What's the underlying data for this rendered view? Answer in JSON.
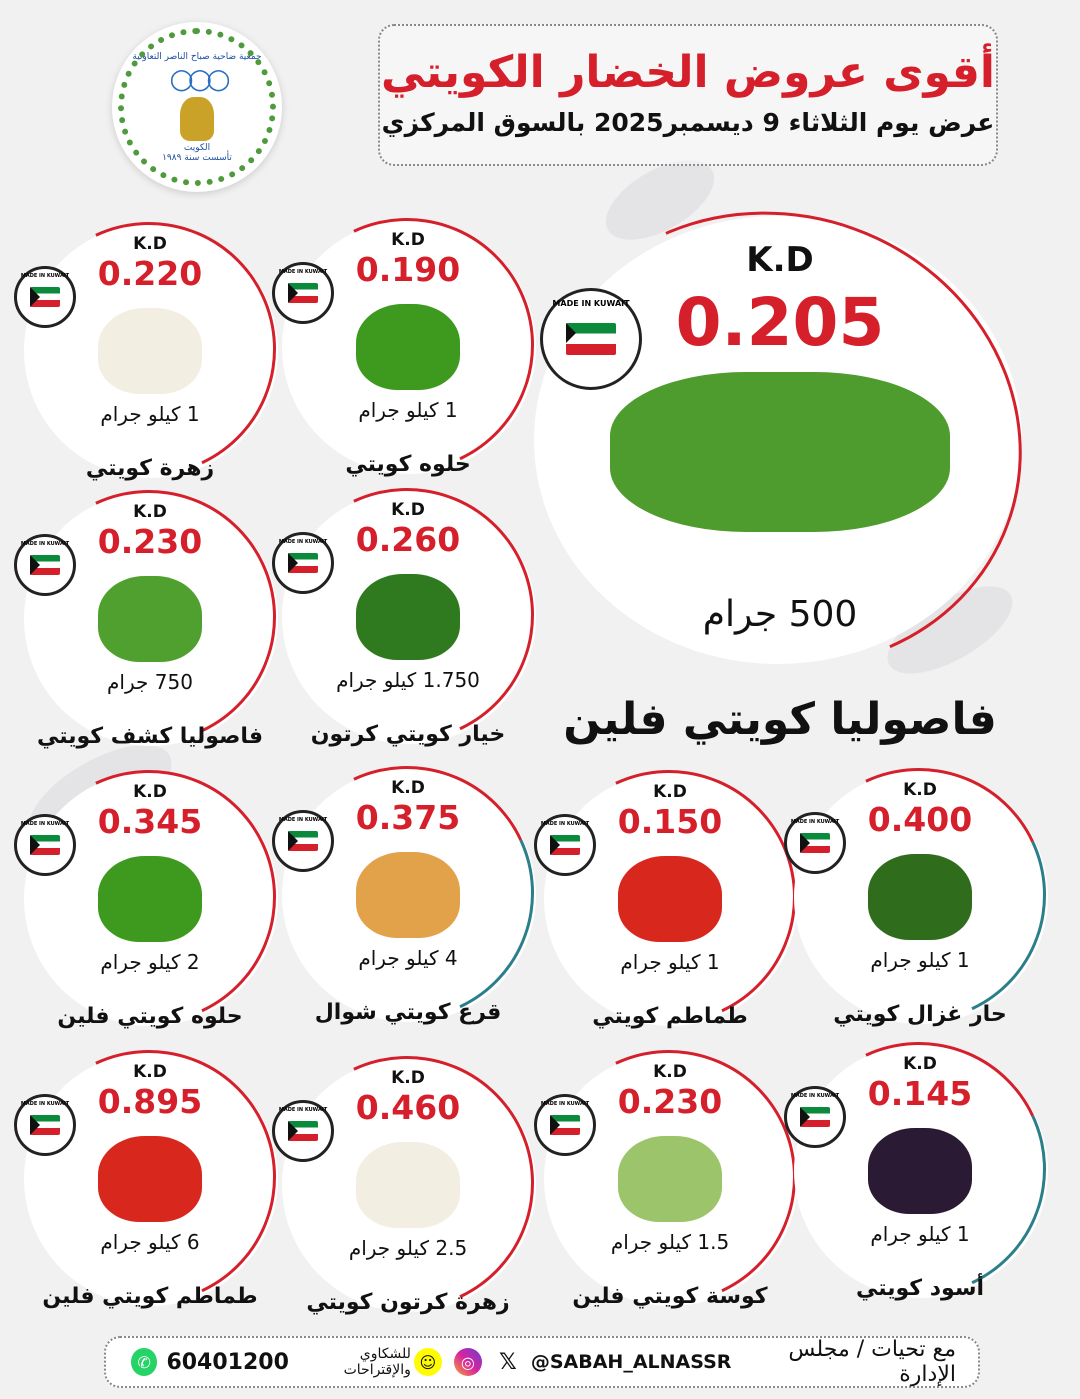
{
  "logo": {
    "text_top": "جمعية ضاحية صباح الناصر التعاونية",
    "text_country": "الكويت",
    "text_founded": "تأسست سنة ١٩٨٩"
  },
  "header": {
    "title": "أقوى عروض الخضار الكويتي",
    "subtitle": "عرض يوم الثلاثاء 9 ديسمبر2025 بالسوق المركزي"
  },
  "badge_text": "MADE IN KUWAIT",
  "currency": "K.D",
  "featured": {
    "price": "0.205",
    "weight": "500 جرام",
    "name": "فاصوليا كويتي فلين",
    "image_color": "#4f9c2e"
  },
  "products": [
    {
      "price": "0.220",
      "weight": "1 كيلو جرام",
      "name": "زهرة كويتي",
      "image_color": "#f2efe2"
    },
    {
      "price": "0.190",
      "weight": "1 كيلو جرام",
      "name": "حلوه كويتي",
      "image_color": "#3e9a1e"
    },
    {
      "price": "0.230",
      "weight": "750 جرام",
      "name": "فاصوليا كشف كويتي",
      "image_color": "#4fa02e"
    },
    {
      "price": "0.260",
      "weight": "1.750 كيلو جرام",
      "name": "خيار كويتي كرتون",
      "image_color": "#2f7a1f"
    },
    {
      "price": "0.345",
      "weight": "2 كيلو جرام",
      "name": "حلوه كويتي فلين",
      "image_color": "#3e9a1e"
    },
    {
      "price": "0.375",
      "weight": "4 كيلو جرام",
      "name": "قرع كويتي شوال",
      "image_color": "#e2a24a"
    },
    {
      "price": "0.150",
      "weight": "1 كيلو جرام",
      "name": "طماطم كويتي",
      "image_color": "#d8281e"
    },
    {
      "price": "0.400",
      "weight": "1 كيلو جرام",
      "name": "حار غزال كويتي",
      "image_color": "#2f6d1c"
    },
    {
      "price": "0.895",
      "weight": "6 كيلو جرام",
      "name": "طماطم كويتي فلين",
      "image_color": "#d8281e"
    },
    {
      "price": "0.460",
      "weight": "2.5 كيلو جرام",
      "name": "زهرة كرتون كويتي",
      "image_color": "#f2efe2"
    },
    {
      "price": "0.230",
      "weight": "1.5 كيلو جرام",
      "name": "كوسة كويتي فلين",
      "image_color": "#9cc46a"
    },
    {
      "price": "0.145",
      "weight": "1 كيلو جرام",
      "name": "أسود كويتي",
      "image_color": "#2a1a33"
    }
  ],
  "footer": {
    "thanks": "مع تحيات / مجلس الإدارة",
    "handle": "@SABAH_ALNASSR",
    "complaints": "للشكاوي والإقتراحات",
    "phone": "60401200",
    "icons": [
      "x-icon",
      "instagram-icon",
      "snapchat-icon",
      "whatsapp-icon"
    ]
  },
  "colors": {
    "accent": "#d51f2a",
    "teal": "#2b7f8a"
  }
}
